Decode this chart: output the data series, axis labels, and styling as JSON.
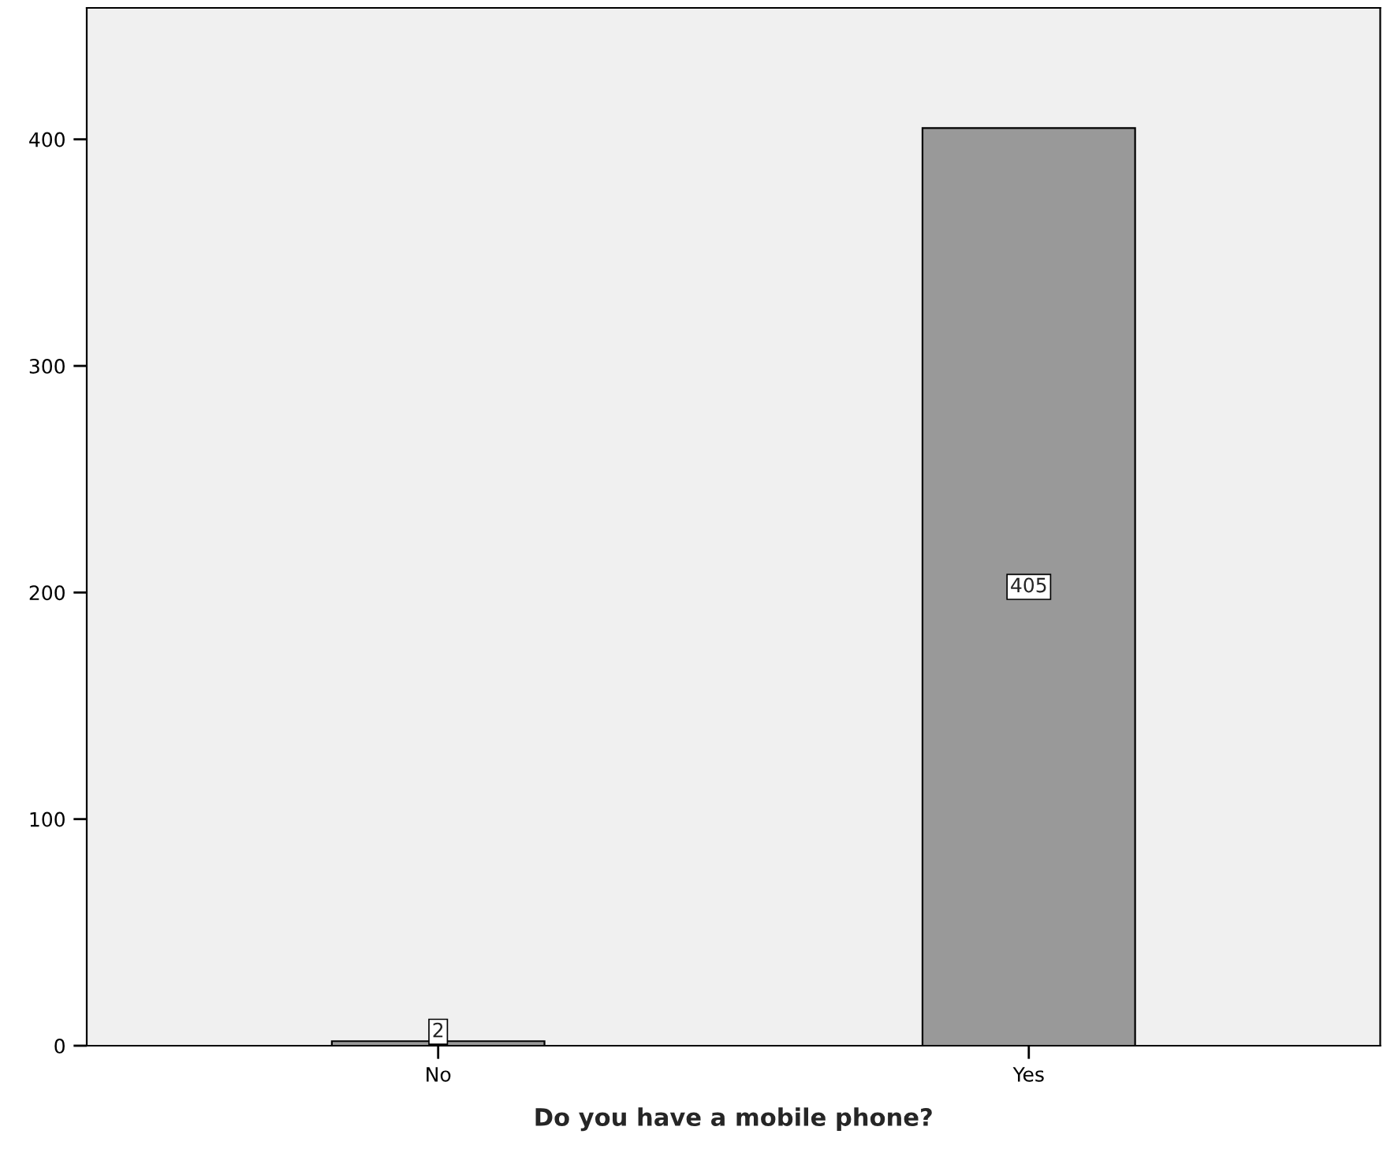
{
  "chart_data": {
    "type": "bar",
    "xlabel": "Do you have a mobile phone?",
    "categories": [
      "No",
      "Yes"
    ],
    "values": [
      2,
      405
    ],
    "color": "#999999",
    "ylim": [
      0,
      458
    ],
    "yticks": [
      0,
      100,
      200,
      300,
      400
    ],
    "grid": false,
    "data_labels": true
  }
}
